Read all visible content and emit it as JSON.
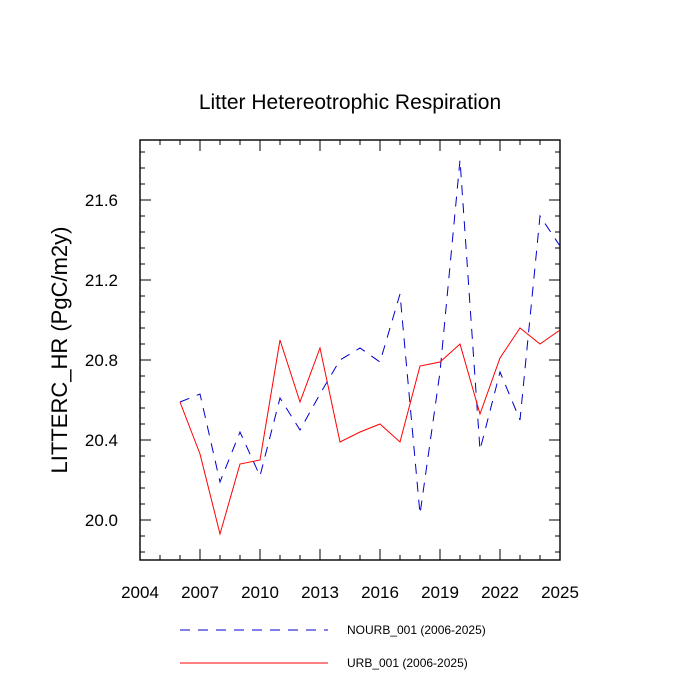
{
  "chart_data": {
    "type": "line",
    "title": "Litter Hetereotrophic Respiration",
    "xlabel": "",
    "ylabel": "LITTERC_HR  (PgC/m2y)",
    "xlim": [
      2004,
      2025
    ],
    "ylim": [
      19.8,
      21.9
    ],
    "xticks": [
      2004,
      2007,
      2010,
      2013,
      2016,
      2019,
      2022,
      2025
    ],
    "xtick_labels": [
      "2004",
      "2007",
      "2010",
      "2013",
      "2016",
      "2019",
      "2022",
      "2025"
    ],
    "yticks": [
      20.0,
      20.4,
      20.8,
      21.2,
      21.6
    ],
    "ytick_labels": [
      "20.0",
      "20.4",
      "20.8",
      "21.2",
      "21.6"
    ],
    "x": [
      2006,
      2007,
      2008,
      2009,
      2010,
      2011,
      2012,
      2013,
      2014,
      2015,
      2016,
      2017,
      2018,
      2019,
      2020,
      2021,
      2022,
      2023,
      2024,
      2025
    ],
    "series": [
      {
        "name": "NOURB_001 (2006-2025)",
        "color": "#0000cc",
        "style": "dashed",
        "values": [
          20.59,
          20.63,
          20.19,
          20.44,
          20.22,
          20.61,
          20.45,
          20.63,
          20.8,
          20.86,
          20.79,
          21.13,
          20.03,
          20.74,
          21.8,
          20.35,
          20.74,
          20.5,
          21.52,
          21.37
        ]
      },
      {
        "name": "URB_001 (2006-2025)",
        "color": "#ff0000",
        "style": "solid",
        "values": [
          20.59,
          20.33,
          19.93,
          20.28,
          20.3,
          20.9,
          20.59,
          20.86,
          20.39,
          20.44,
          20.48,
          20.39,
          20.77,
          20.79,
          20.88,
          20.53,
          20.81,
          20.96,
          20.88,
          20.95
        ]
      }
    ]
  }
}
